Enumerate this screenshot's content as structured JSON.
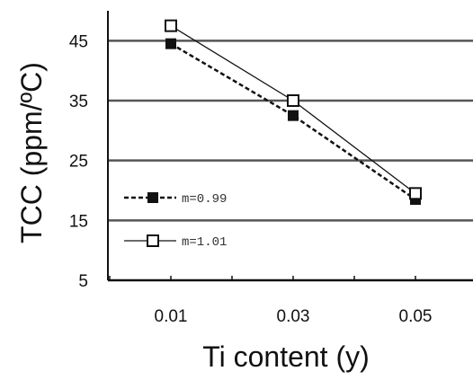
{
  "chart_data": {
    "type": "line",
    "xlabel": "Ti content (y)",
    "ylabel": "TCC (ppm/ºC)",
    "categories": [
      "0.01",
      "0.03",
      "0.05"
    ],
    "x": [
      0.01,
      0.03,
      0.05
    ],
    "y_ticks": [
      "5",
      "15",
      "25",
      "35",
      "45"
    ],
    "ylim": [
      5,
      50
    ],
    "grid": "horizontal",
    "legend_position": "bottom-left",
    "series": [
      {
        "name": "m=0.99",
        "values": [
          44.5,
          32.5,
          18.5
        ],
        "marker": "filled-square",
        "line_style": "dashed",
        "color": "#111111"
      },
      {
        "name": "m=1.01",
        "values": [
          47.5,
          35.0,
          19.5
        ],
        "marker": "open-square",
        "line_style": "solid",
        "color": "#111111"
      }
    ]
  }
}
